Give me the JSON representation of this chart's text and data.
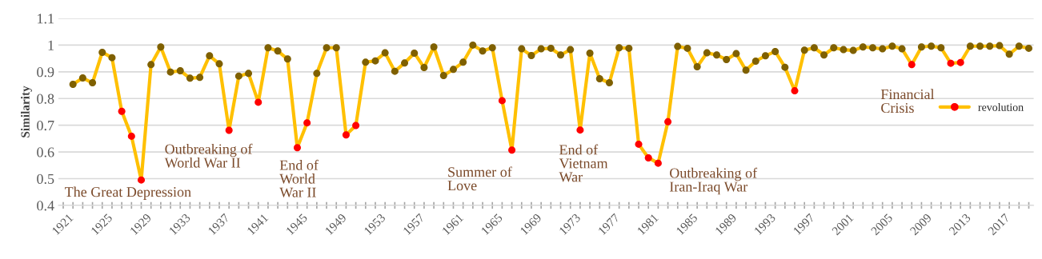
{
  "chart_data": {
    "type": "line",
    "ylabel": "Similarity",
    "x": [
      1922,
      1923,
      1924,
      1925,
      1926,
      1927,
      1928,
      1929,
      1930,
      1931,
      1932,
      1933,
      1934,
      1935,
      1936,
      1937,
      1938,
      1939,
      1940,
      1941,
      1942,
      1943,
      1944,
      1945,
      1946,
      1947,
      1948,
      1949,
      1950,
      1951,
      1952,
      1953,
      1954,
      1955,
      1956,
      1957,
      1958,
      1959,
      1960,
      1961,
      1962,
      1963,
      1964,
      1965,
      1966,
      1967,
      1968,
      1969,
      1970,
      1971,
      1972,
      1973,
      1974,
      1975,
      1976,
      1977,
      1978,
      1979,
      1980,
      1981,
      1982,
      1983,
      1984,
      1985,
      1986,
      1987,
      1988,
      1989,
      1990,
      1991,
      1992,
      1993,
      1994,
      1995,
      1996,
      1997,
      1998,
      1999,
      2000,
      2001,
      2002,
      2003,
      2004,
      2005,
      2006,
      2007,
      2008,
      2009,
      2010,
      2011,
      2012,
      2013,
      2014,
      2015,
      2016,
      2017,
      2018,
      2019,
      2020
    ],
    "series": [
      {
        "name": "revolution",
        "color": "#ffc000",
        "marker": "circle",
        "values": [
          0.853,
          0.877,
          0.859,
          0.973,
          0.953,
          0.752,
          0.659,
          0.495,
          0.927,
          0.993,
          0.899,
          0.904,
          0.876,
          0.879,
          0.96,
          0.93,
          0.681,
          0.884,
          0.894,
          0.786,
          0.99,
          0.978,
          0.948,
          0.616,
          0.709,
          0.894,
          0.99,
          0.99,
          0.664,
          0.699,
          0.936,
          0.941,
          0.971,
          0.902,
          0.933,
          0.97,
          0.916,
          0.993,
          0.886,
          0.909,
          0.936,
          1.0,
          0.978,
          0.99,
          0.792,
          0.607,
          0.986,
          0.961,
          0.986,
          0.988,
          0.963,
          0.983,
          0.682,
          0.97,
          0.874,
          0.859,
          0.99,
          0.988,
          0.629,
          0.578,
          0.558,
          0.713,
          0.995,
          0.988,
          0.919,
          0.971,
          0.963,
          0.946,
          0.968,
          0.906,
          0.94,
          0.96,
          0.976,
          0.917,
          0.829,
          0.981,
          0.99,
          0.963,
          0.99,
          0.983,
          0.98,
          0.993,
          0.99,
          0.986,
          0.996,
          0.986,
          0.927,
          0.993,
          0.996,
          0.99,
          0.932,
          0.935,
          0.996,
          0.996,
          0.996,
          0.998,
          0.966,
          0.996,
          0.988
        ],
        "colors": [
          "#7f6000",
          "#7f6000",
          "#7f6000",
          "#7f6000",
          "#7f6000",
          "#ff0000",
          "#ff0000",
          "#ff0000",
          "#7f6000",
          "#7f6000",
          "#7f6000",
          "#7f6000",
          "#7f6000",
          "#7f6000",
          "#7f6000",
          "#7f6000",
          "#ff0000",
          "#7f6000",
          "#7f6000",
          "#ff0000",
          "#7f6000",
          "#7f6000",
          "#7f6000",
          "#ff0000",
          "#ff0000",
          "#7f6000",
          "#7f6000",
          "#7f6000",
          "#ff0000",
          "#ff0000",
          "#7f6000",
          "#7f6000",
          "#7f6000",
          "#7f6000",
          "#7f6000",
          "#7f6000",
          "#7f6000",
          "#7f6000",
          "#7f6000",
          "#7f6000",
          "#7f6000",
          "#7f6000",
          "#7f6000",
          "#7f6000",
          "#ff0000",
          "#ff0000",
          "#7f6000",
          "#7f6000",
          "#7f6000",
          "#7f6000",
          "#7f6000",
          "#7f6000",
          "#ff0000",
          "#7f6000",
          "#7f6000",
          "#7f6000",
          "#7f6000",
          "#7f6000",
          "#ff0000",
          "#ff0000",
          "#ff0000",
          "#ff0000",
          "#7f6000",
          "#7f6000",
          "#7f6000",
          "#7f6000",
          "#7f6000",
          "#7f6000",
          "#7f6000",
          "#7f6000",
          "#7f6000",
          "#7f6000",
          "#7f6000",
          "#7f6000",
          "#ff0000",
          "#7f6000",
          "#7f6000",
          "#7f6000",
          "#7f6000",
          "#7f6000",
          "#7f6000",
          "#7f6000",
          "#7f6000",
          "#7f6000",
          "#7f6000",
          "#7f6000",
          "#ff0000",
          "#7f6000",
          "#7f6000",
          "#7f6000",
          "#ff0000",
          "#ff0000",
          "#7f6000",
          "#7f6000",
          "#7f6000",
          "#7f6000",
          "#7f6000",
          "#7f6000",
          "#7f6000"
        ]
      }
    ],
    "xlim": [
      1920.5,
      2020.5
    ],
    "xticks": [
      1921,
      {
        "value": 1922,
        "label": null
      },
      {
        "value": 1923,
        "label": null
      },
      {
        "value": 1924,
        "label": null
      },
      1925,
      {
        "value": 1926,
        "label": null
      },
      {
        "value": 1927,
        "label": null
      },
      {
        "value": 1928,
        "label": null
      },
      1929,
      {
        "value": 1930,
        "label": null
      },
      {
        "value": 1931,
        "label": null
      },
      {
        "value": 1932,
        "label": null
      },
      1933,
      {
        "value": 1934,
        "label": null
      },
      {
        "value": 1935,
        "label": null
      },
      {
        "value": 1936,
        "label": null
      },
      1937,
      {
        "value": 1938,
        "label": null
      },
      {
        "value": 1939,
        "label": null
      },
      {
        "value": 1940,
        "label": null
      },
      1941,
      {
        "value": 1942,
        "label": null
      },
      {
        "value": 1943,
        "label": null
      },
      {
        "value": 1944,
        "label": null
      },
      1945,
      {
        "value": 1946,
        "label": null
      },
      {
        "value": 1947,
        "label": null
      },
      {
        "value": 1948,
        "label": null
      },
      1949,
      {
        "value": 1950,
        "label": null
      },
      {
        "value": 1951,
        "label": null
      },
      {
        "value": 1952,
        "label": null
      },
      1953,
      {
        "value": 1954,
        "label": null
      },
      {
        "value": 1955,
        "label": null
      },
      {
        "value": 1956,
        "label": null
      },
      1957,
      {
        "value": 1958,
        "label": null
      },
      {
        "value": 1959,
        "label": null
      },
      {
        "value": 1960,
        "label": null
      },
      1961,
      {
        "value": 1962,
        "label": null
      },
      {
        "value": 1963,
        "label": null
      },
      {
        "value": 1964,
        "label": null
      },
      1965,
      {
        "value": 1966,
        "label": null
      },
      {
        "value": 1967,
        "label": null
      },
      {
        "value": 1968,
        "label": null
      },
      1969,
      {
        "value": 1970,
        "label": null
      },
      {
        "value": 1971,
        "label": null
      },
      {
        "value": 1972,
        "label": null
      },
      1973,
      {
        "value": 1974,
        "label": null
      },
      {
        "value": 1975,
        "label": null
      },
      {
        "value": 1976,
        "label": null
      },
      1977,
      {
        "value": 1978,
        "label": null
      },
      {
        "value": 1979,
        "label": null
      },
      {
        "value": 1980,
        "label": null
      },
      1981,
      {
        "value": 1982,
        "label": null
      },
      {
        "value": 1983,
        "label": null
      },
      {
        "value": 1984,
        "label": null
      },
      1985,
      {
        "value": 1986,
        "label": null
      },
      {
        "value": 1987,
        "label": null
      },
      {
        "value": 1988,
        "label": null
      },
      1989,
      {
        "value": 1990,
        "label": null
      },
      {
        "value": 1991,
        "label": null
      },
      {
        "value": 1992,
        "label": null
      },
      1993,
      {
        "value": 1994,
        "label": null
      },
      {
        "value": 1995,
        "label": null
      },
      {
        "value": 1996,
        "label": null
      },
      1997,
      {
        "value": 1998,
        "label": null
      },
      {
        "value": 1999,
        "label": null
      },
      {
        "value": 2000,
        "label": null
      },
      2001,
      {
        "value": 2002,
        "label": null
      },
      {
        "value": 2003,
        "label": null
      },
      {
        "value": 2004,
        "label": null
      },
      2005,
      {
        "value": 2006,
        "label": null
      },
      {
        "value": 2007,
        "label": null
      },
      {
        "value": 2008,
        "label": null
      },
      2009,
      {
        "value": 2010,
        "label": null
      },
      {
        "value": 2011,
        "label": null
      },
      {
        "value": 2012,
        "label": null
      },
      2013,
      {
        "value": 2014,
        "label": null
      },
      {
        "value": 2015,
        "label": null
      },
      {
        "value": 2016,
        "label": null
      },
      2017,
      {
        "value": 2018,
        "label": null
      },
      {
        "value": 2019,
        "label": null
      },
      {
        "value": 2020,
        "label": null
      }
    ],
    "ylim": [
      0.4,
      1.1
    ],
    "yticks": [
      0.4,
      0.5,
      0.6,
      0.7,
      0.8,
      0.9,
      {
        "value": 1,
        "label": "1"
      },
      1.1
    ],
    "grid": "y",
    "legend": "right",
    "annotations": [
      {
        "text": "The Great Depression",
        "x": 1929,
        "y": 0.495
      },
      {
        "text": "Outbreaking of\nWorld War II",
        "x": 1938,
        "y": 0.681
      },
      {
        "text": "End of\nWorld\nWar II",
        "x": 1945,
        "y": 0.616
      },
      {
        "text": "Summer of\nLove",
        "x": 1967,
        "y": 0.607
      },
      {
        "text": "End of\nVietnam\nWar",
        "x": 1974,
        "y": 0.682
      },
      {
        "text": "Outbreaking of\nIran-Iraq War",
        "x": 1982,
        "y": 0.558
      },
      {
        "text": "Financial\nCrisis",
        "x": 2008,
        "y": 0.927
      }
    ]
  }
}
